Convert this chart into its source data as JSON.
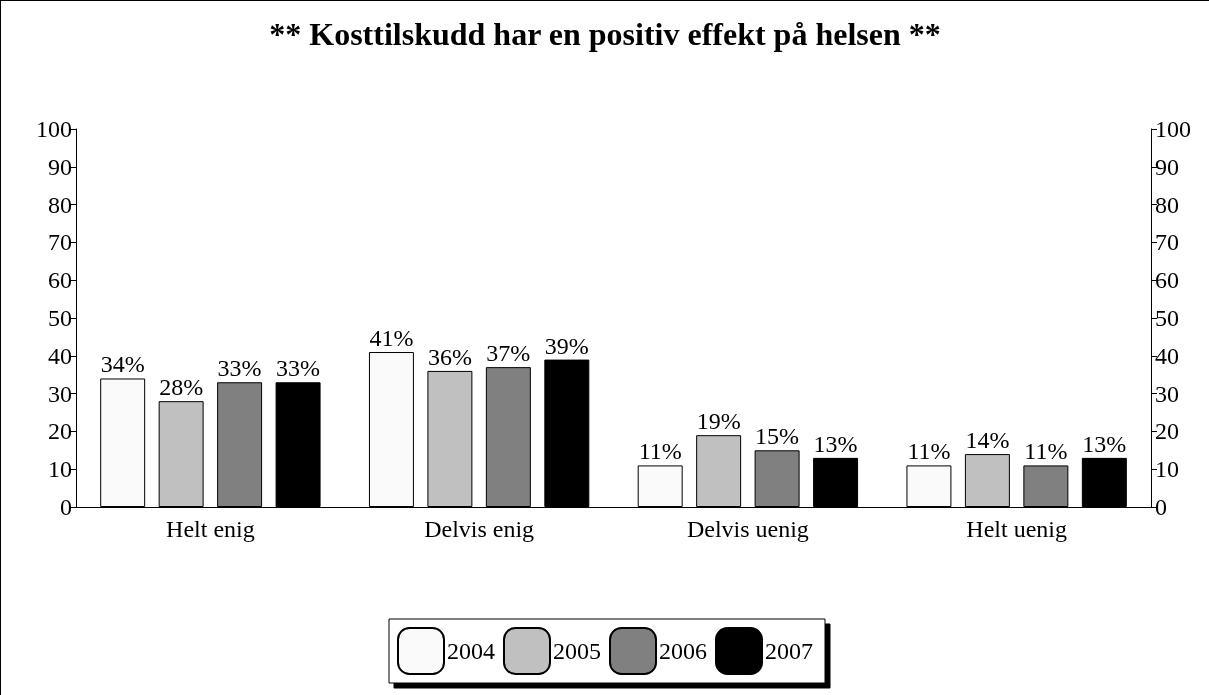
{
  "chart_data": {
    "type": "bar",
    "title": "** Kosttilskudd har en positiv effekt på helsen **",
    "categories": [
      "Helt enig",
      "Delvis enig",
      "Delvis uenig",
      "Helt uenig"
    ],
    "series": [
      {
        "name": "2004",
        "color": "#fafafa",
        "values": [
          34,
          41,
          11,
          11
        ],
        "value_labels": [
          "34%",
          "41%",
          "11%",
          "11%"
        ]
      },
      {
        "name": "2005",
        "color": "#c0c0c0",
        "values": [
          28,
          36,
          19,
          14
        ],
        "value_labels": [
          "28%",
          "36%",
          "19%",
          "14%"
        ]
      },
      {
        "name": "2006",
        "color": "#808080",
        "values": [
          33,
          37,
          15,
          11
        ],
        "value_labels": [
          "33%",
          "37%",
          "15%",
          "11%"
        ]
      },
      {
        "name": "2007",
        "color": "#000000",
        "values": [
          33,
          39,
          13,
          13
        ],
        "value_labels": [
          "33%",
          "39%",
          "13%",
          "13%"
        ]
      }
    ],
    "ylim": [
      0,
      100
    ],
    "yticks": [
      0,
      10,
      20,
      30,
      40,
      50,
      60,
      70,
      80,
      90,
      100
    ],
    "y2lim": [
      0,
      100
    ],
    "y2ticks": [
      0,
      10,
      20,
      30,
      40,
      50,
      60,
      70,
      80,
      90,
      100
    ],
    "grid": false,
    "legend": "bottom"
  }
}
